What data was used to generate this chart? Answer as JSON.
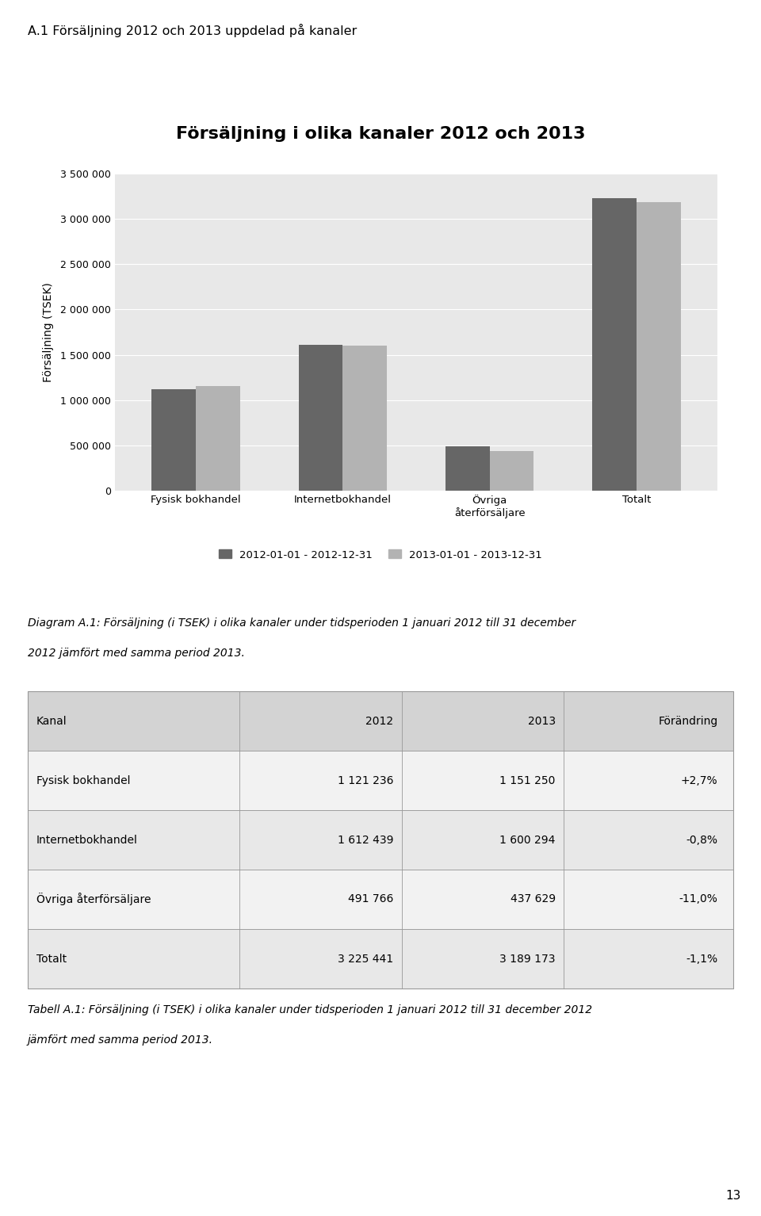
{
  "page_title": "A.1 Försäljning 2012 och 2013 uppdelad på kanaler",
  "chart_title": "Försäljning i olika kanaler 2012 och 2013",
  "ylabel": "Försäljning (TSEK)",
  "categories": [
    "Fysisk bokhandel",
    "Internetbokhandel",
    "Övriga\nåterförsäljare",
    "Totalt"
  ],
  "values_2012": [
    1121236,
    1612439,
    491766,
    3225441
  ],
  "values_2013": [
    1151250,
    1600294,
    437629,
    3189173
  ],
  "color_2012": "#666666",
  "color_2013": "#b3b3b3",
  "legend_2012": "2012-01-01 - 2012-12-31",
  "legend_2013": "2013-01-01 - 2013-12-31",
  "ylim": [
    0,
    3500000
  ],
  "yticks": [
    0,
    500000,
    1000000,
    1500000,
    2000000,
    2500000,
    3000000,
    3500000
  ],
  "ytick_labels": [
    "0",
    "500 000",
    "1 000 000",
    "1 500 000",
    "2 000 000",
    "2 500 000",
    "3 000 000",
    "3 500 000"
  ],
  "chart_bg": "#e8e8e8",
  "outer_bg": "#ffffff",
  "diagram_caption_line1": "Diagram A.1: Försäljning (i TSEK) i olika kanaler under tidsperioden 1 januari 2012 till 31 december",
  "diagram_caption_line2": "2012 jämfört med samma period 2013.",
  "table_caption_line1": "Tabell A.1: Försäljning (i TSEK) i olika kanaler under tidsperioden 1 januari 2012 till 31 december 2012",
  "table_caption_line2": "jämfört med samma period 2013.",
  "table_headers": [
    "Kanal",
    "2012",
    "2013",
    "Förändring"
  ],
  "table_rows": [
    [
      "Fysisk bokhandel",
      "1 121 236",
      "1 151 250",
      "+2,7%"
    ],
    [
      "Internetbokhandel",
      "1 612 439",
      "1 600 294",
      "-0,8%"
    ],
    [
      "Övriga återförsäljare",
      "491 766",
      "437 629",
      "-11,0%"
    ],
    [
      "Totalt",
      "3 225 441",
      "3 189 173",
      "-1,1%"
    ]
  ],
  "page_number": "13"
}
